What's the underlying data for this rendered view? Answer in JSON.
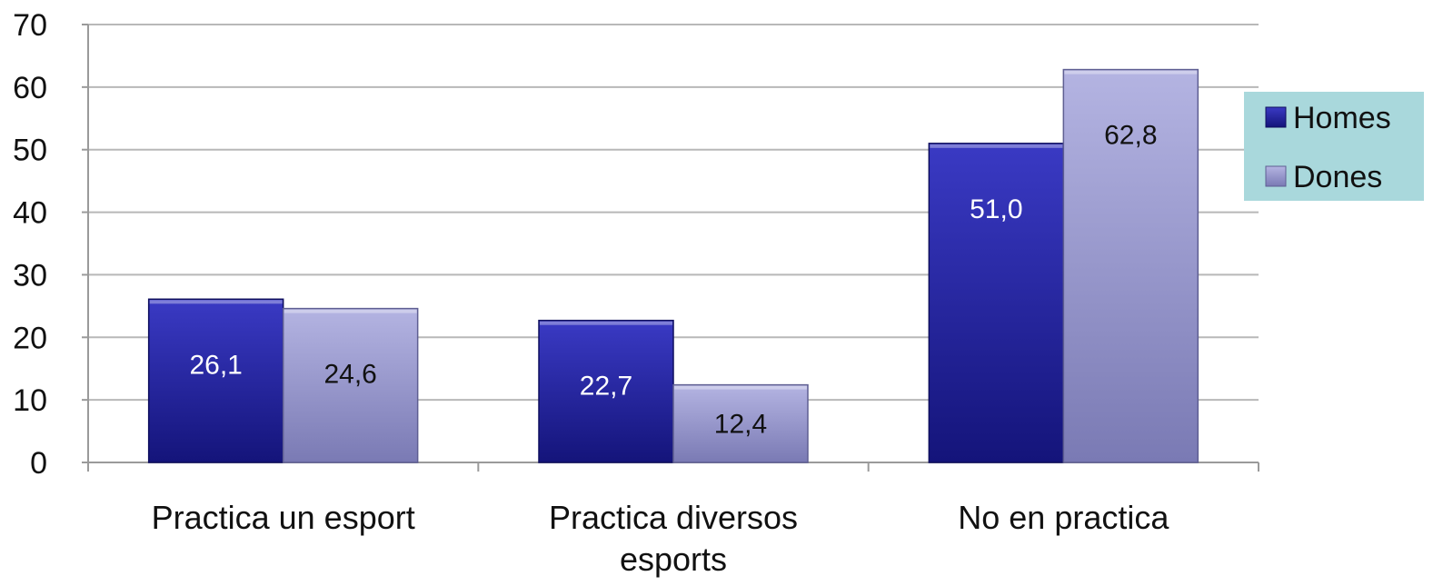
{
  "chart_data": {
    "type": "bar",
    "title": "",
    "xlabel": "",
    "ylabel": "",
    "ylim": [
      0,
      70
    ],
    "yticks": [
      "0",
      "10",
      "20",
      "30",
      "40",
      "50",
      "60",
      "70"
    ],
    "grid": true,
    "legend_position": "right",
    "categories": [
      [
        "Practica un esport"
      ],
      [
        "Practica diversos",
        "esports"
      ],
      [
        "No en practica"
      ]
    ],
    "series": [
      {
        "name": "Homes",
        "values": [
          26.1,
          22.7,
          51.0
        ],
        "labels": [
          "26,1",
          "22,7",
          "51,0"
        ],
        "color": "#1f1f9e",
        "label_color": "#ffffff"
      },
      {
        "name": "Dones",
        "values": [
          24.6,
          12.4,
          62.8
        ],
        "labels": [
          "24,6",
          "12,4",
          "62,8"
        ],
        "color": "#9a9ad0",
        "label_color": "#111111"
      }
    ],
    "legend_background": "#a9d8dc"
  }
}
